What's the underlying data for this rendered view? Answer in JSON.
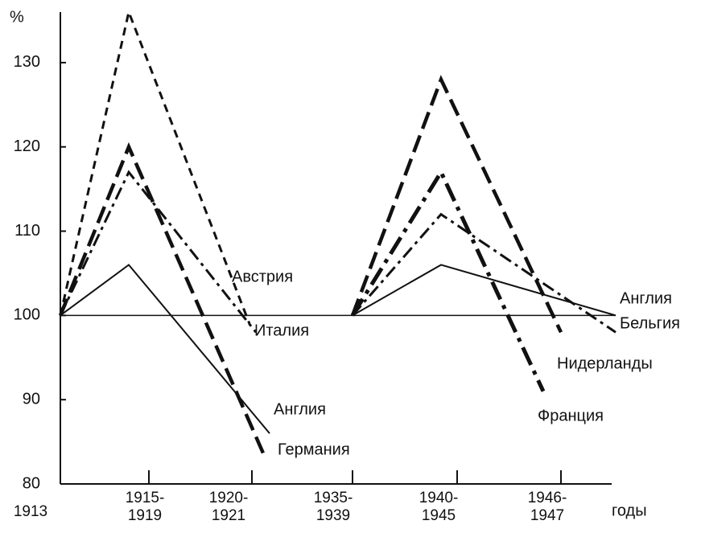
{
  "chart_data": {
    "type": "line",
    "y_label": "%",
    "x_label": "годы",
    "categories": [
      "1913",
      "1915-\n1919",
      "1920-\n1921",
      "1935-\n1939",
      "1940-\n1945",
      "1946-\n1947"
    ],
    "ylim": [
      80,
      136
    ],
    "yticks": [
      80,
      90,
      100,
      110,
      120,
      130
    ],
    "reference_line": 100,
    "color": "#111111",
    "series": [
      {
        "name": "Австрия",
        "style": "short-dash",
        "values": [
          100,
          136,
          99,
          null,
          null,
          null
        ]
      },
      {
        "name": "Италия",
        "style": "dash-dot",
        "values": [
          100,
          117,
          98,
          null,
          null,
          null
        ]
      },
      {
        "name": "Германия",
        "style": "long-dash-bold",
        "values": [
          100,
          120,
          83,
          null,
          null,
          null
        ]
      },
      {
        "name": "Англия",
        "style": "solid",
        "values": [
          100,
          106,
          86,
          null,
          null,
          null
        ]
      },
      {
        "name": "Нидерланды",
        "style": "long-dash-bold",
        "values": [
          null,
          null,
          null,
          100,
          128,
          98
        ]
      },
      {
        "name": "Франция",
        "style": "dash-dot-bold",
        "values": [
          null,
          null,
          null,
          100,
          117,
          91
        ]
      },
      {
        "name": "Бельгия",
        "style": "dash-dot",
        "values": [
          null,
          null,
          null,
          100,
          112,
          98
        ]
      },
      {
        "name": "Англия",
        "style": "solid",
        "values": [
          null,
          null,
          null,
          100,
          106,
          100
        ]
      }
    ]
  }
}
